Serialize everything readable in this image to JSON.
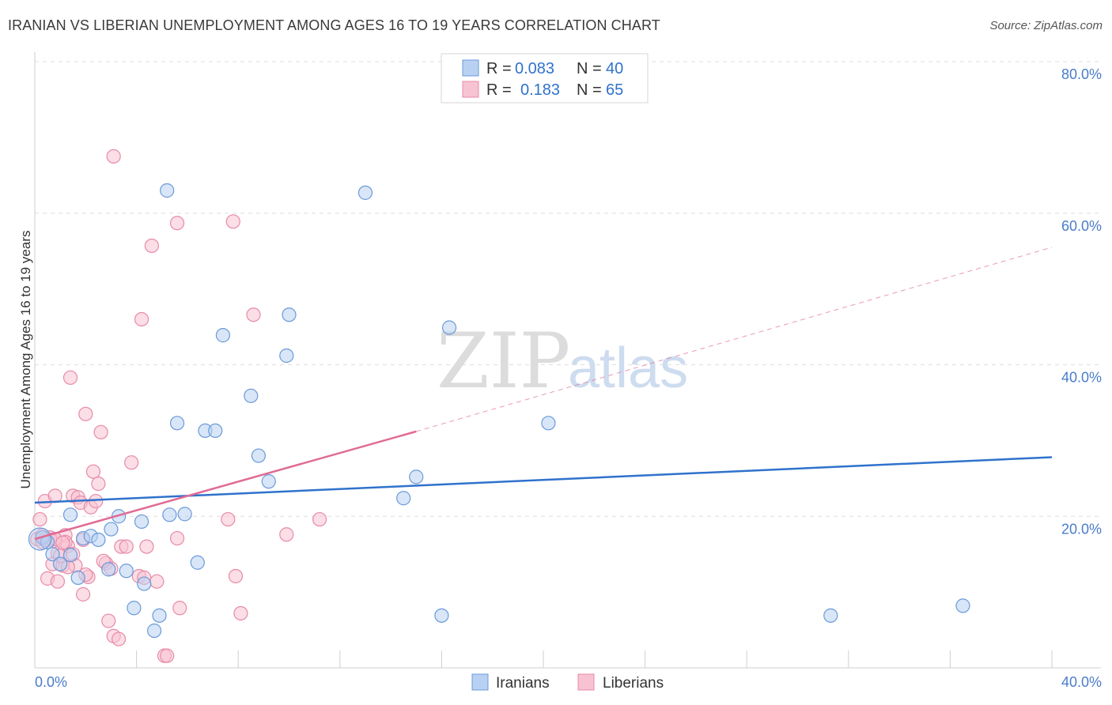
{
  "title": "IRANIAN VS LIBERIAN UNEMPLOYMENT AMONG AGES 16 TO 19 YEARS CORRELATION CHART",
  "source": "Source: ZipAtlas.com",
  "watermark": {
    "zip": "ZIP",
    "atlas": "atlas"
  },
  "colors": {
    "iranians_fill": "#b8d1f3",
    "iranians_stroke": "#6b9ad8",
    "iranians_line": "#2f72cc",
    "liberians_fill": "#f7c3d2",
    "liberians_stroke": "#e88aa8",
    "liberians_line": "#e06b94",
    "axis_label": "#4a7cc9",
    "grid": "#dddddd"
  },
  "legend": {
    "rows": [
      {
        "r_label": "R =",
        "r_value": "0.083",
        "n_label": "N =",
        "n_value": "40"
      },
      {
        "r_label": "R =",
        "r_value": "0.183",
        "n_label": "N =",
        "n_value": "65"
      }
    ]
  },
  "chart_data": {
    "type": "scatter",
    "xlabel": "",
    "ylabel": "Unemployment Among Ages 16 to 19 years",
    "xlim": [
      0,
      40
    ],
    "ylim": [
      0,
      80
    ],
    "x_tick_labels": [
      "0.0%",
      "40.0%"
    ],
    "y_ticks": [
      20,
      40,
      60,
      80
    ],
    "y_tick_labels": [
      "20.0%",
      "40.0%",
      "60.0%",
      "80.0%"
    ],
    "grid": true,
    "legend_position": "top-center",
    "series": [
      {
        "name": "Iranians",
        "points": [
          [
            0.3,
            17.2
          ],
          [
            0.5,
            16.6
          ],
          [
            0.7,
            15.0
          ],
          [
            1.0,
            13.7
          ],
          [
            1.4,
            14.9
          ],
          [
            1.4,
            20.2
          ],
          [
            1.7,
            11.9
          ],
          [
            1.9,
            17.1
          ],
          [
            2.2,
            17.4
          ],
          [
            2.5,
            16.9
          ],
          [
            2.9,
            13.0
          ],
          [
            3.0,
            18.3
          ],
          [
            3.3,
            20.0
          ],
          [
            3.6,
            12.8
          ],
          [
            3.9,
            7.9
          ],
          [
            4.2,
            19.3
          ],
          [
            4.3,
            11.1
          ],
          [
            4.7,
            4.9
          ],
          [
            4.9,
            6.9
          ],
          [
            5.2,
            63.0
          ],
          [
            5.3,
            20.2
          ],
          [
            5.6,
            32.3
          ],
          [
            5.9,
            20.3
          ],
          [
            6.4,
            13.9
          ],
          [
            6.7,
            31.3
          ],
          [
            7.1,
            31.3
          ],
          [
            7.4,
            43.9
          ],
          [
            8.5,
            35.9
          ],
          [
            8.8,
            28.0
          ],
          [
            9.2,
            24.6
          ],
          [
            9.9,
            41.2
          ],
          [
            10.0,
            46.6
          ],
          [
            13.0,
            62.7
          ],
          [
            14.5,
            22.4
          ],
          [
            15.0,
            25.2
          ],
          [
            16.0,
            6.9
          ],
          [
            16.3,
            44.9
          ],
          [
            20.2,
            32.3
          ],
          [
            31.3,
            6.9
          ],
          [
            36.5,
            8.2
          ]
        ]
      },
      {
        "name": "Liberians",
        "points": [
          [
            0.1,
            17.0
          ],
          [
            0.2,
            19.6
          ],
          [
            0.3,
            16.6
          ],
          [
            0.4,
            22.0
          ],
          [
            0.5,
            11.8
          ],
          [
            0.6,
            17.2
          ],
          [
            0.7,
            13.7
          ],
          [
            0.8,
            22.7
          ],
          [
            0.9,
            11.4
          ],
          [
            0.9,
            15.1
          ],
          [
            1.1,
            13.5
          ],
          [
            1.2,
            17.5
          ],
          [
            1.3,
            16.1
          ],
          [
            1.4,
            38.3
          ],
          [
            1.5,
            15.0
          ],
          [
            1.5,
            22.7
          ],
          [
            1.6,
            13.5
          ],
          [
            1.7,
            22.5
          ],
          [
            1.8,
            21.8
          ],
          [
            1.9,
            16.9
          ],
          [
            1.9,
            9.7
          ],
          [
            2.0,
            33.5
          ],
          [
            2.1,
            12.0
          ],
          [
            2.2,
            21.2
          ],
          [
            2.3,
            25.9
          ],
          [
            2.4,
            22.0
          ],
          [
            2.5,
            24.3
          ],
          [
            2.6,
            31.1
          ],
          [
            2.8,
            13.8
          ],
          [
            2.9,
            6.2
          ],
          [
            3.0,
            13.1
          ],
          [
            3.1,
            67.5
          ],
          [
            3.1,
            4.2
          ],
          [
            3.3,
            3.8
          ],
          [
            3.4,
            16.0
          ],
          [
            3.6,
            16.0
          ],
          [
            3.8,
            27.1
          ],
          [
            4.1,
            12.1
          ],
          [
            4.2,
            46.0
          ],
          [
            4.3,
            11.9
          ],
          [
            4.4,
            16.0
          ],
          [
            4.6,
            55.7
          ],
          [
            4.8,
            11.4
          ],
          [
            5.1,
            1.6
          ],
          [
            5.2,
            1.6
          ],
          [
            5.6,
            58.7
          ],
          [
            5.6,
            17.1
          ],
          [
            5.7,
            7.9
          ],
          [
            7.6,
            19.6
          ],
          [
            7.8,
            58.9
          ],
          [
            7.9,
            12.1
          ],
          [
            8.1,
            7.2
          ],
          [
            8.6,
            46.6
          ],
          [
            9.9,
            17.6
          ],
          [
            11.2,
            19.6
          ],
          [
            0.6,
            16.9
          ],
          [
            1.0,
            14.8
          ],
          [
            1.2,
            16.6
          ],
          [
            1.3,
            13.3
          ],
          [
            0.8,
            17.0
          ],
          [
            2.0,
            12.3
          ],
          [
            0.4,
            16.9
          ],
          [
            1.1,
            16.5
          ],
          [
            2.7,
            14.1
          ],
          [
            0.3,
            17.5
          ]
        ]
      }
    ],
    "trend_lines": [
      {
        "series": "Iranians",
        "x": [
          0,
          40
        ],
        "y": [
          21.8,
          27.8
        ],
        "style": "solid"
      },
      {
        "series": "Liberians",
        "x": [
          0,
          15
        ],
        "y": [
          17.0,
          31.2
        ],
        "style": "solid"
      },
      {
        "series": "Liberians",
        "x": [
          15,
          40
        ],
        "y": [
          31.2,
          55.5
        ],
        "style": "dashed"
      }
    ]
  }
}
